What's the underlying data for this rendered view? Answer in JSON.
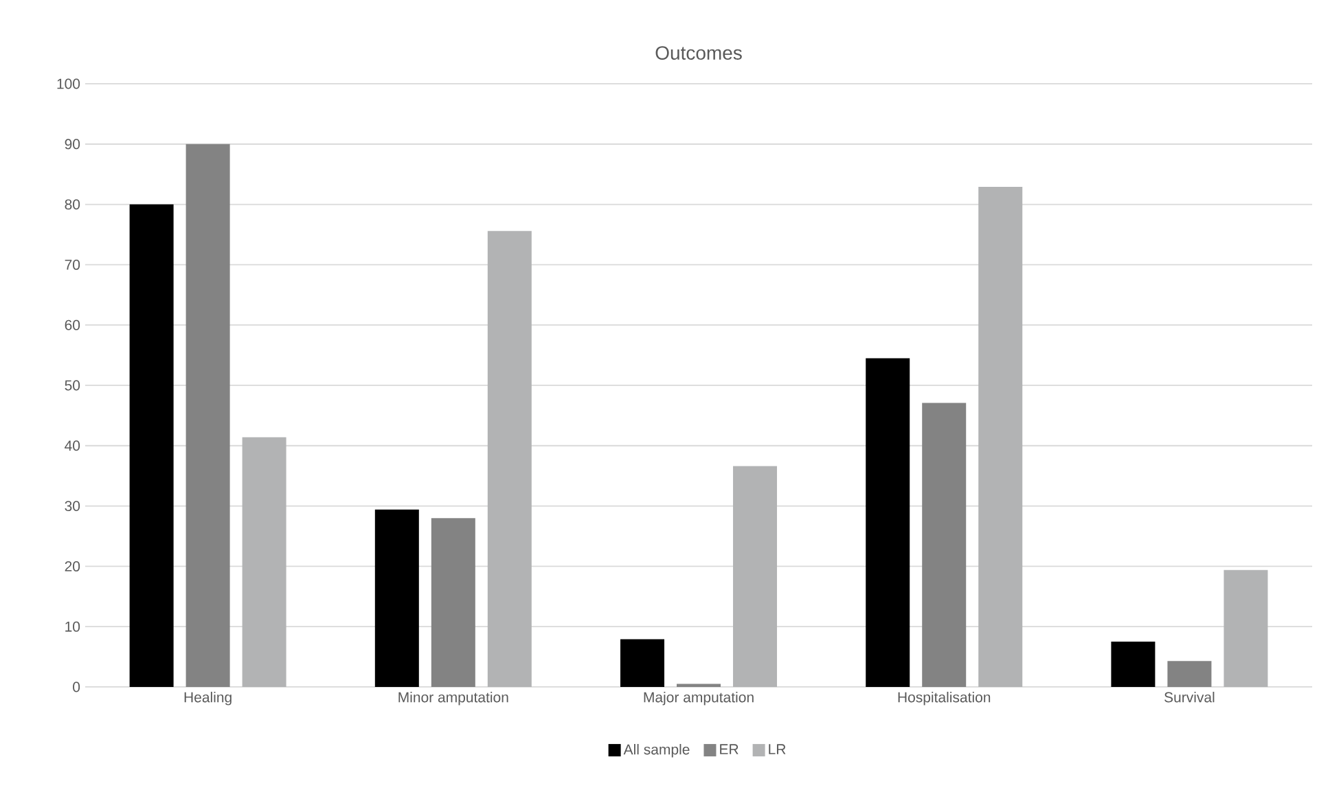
{
  "chart_data": {
    "type": "bar",
    "title": "Outcomes",
    "categories": [
      "Healing",
      "Minor amputation",
      "Major amputation",
      "Hospitalisation",
      "Survival"
    ],
    "series": [
      {
        "name": "All sample",
        "color": "#000000",
        "values": [
          80,
          29.4,
          7.9,
          54.5,
          7.5
        ]
      },
      {
        "name": "ER",
        "color": "#838383",
        "values": [
          90,
          28,
          0.5,
          47.1,
          4.3
        ]
      },
      {
        "name": "LR",
        "color": "#b2b3b4",
        "values": [
          41.4,
          75.6,
          36.6,
          82.9,
          19.4
        ]
      }
    ],
    "ylim": [
      0,
      100
    ],
    "yticks": [
      0,
      10,
      20,
      30,
      40,
      50,
      60,
      70,
      80,
      90,
      100
    ],
    "grid": "y",
    "legend": "bottom"
  }
}
